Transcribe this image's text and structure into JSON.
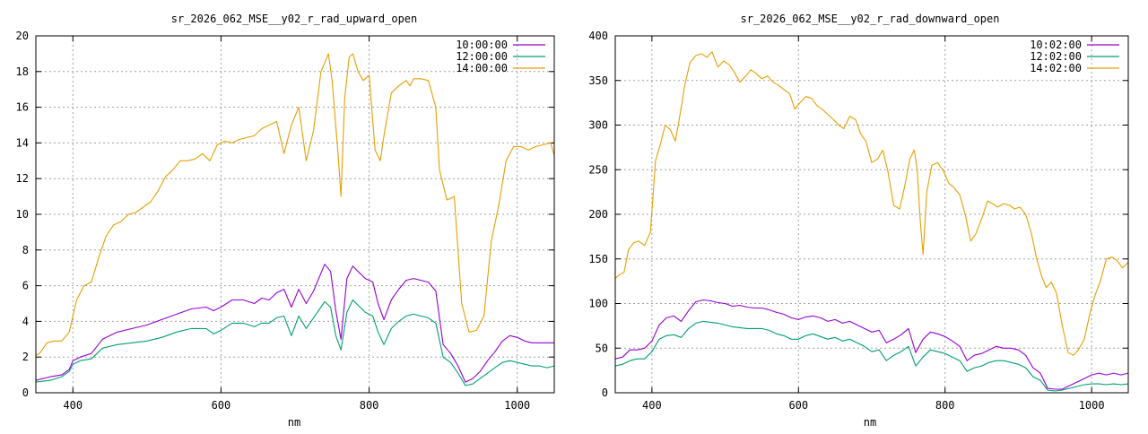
{
  "chart_data": [
    {
      "type": "line",
      "title": "sr_2026_062_MSE__y02_r_rad_upward_open",
      "xlabel": "nm",
      "ylabel": "",
      "xlim": [
        350,
        1050
      ],
      "ylim": [
        0,
        20
      ],
      "xticks": [
        "400",
        "600",
        "800",
        "1000"
      ],
      "yticks": [
        "0",
        "2",
        "4",
        "6",
        "8",
        "10",
        "12",
        "14",
        "16",
        "18",
        "20"
      ],
      "grid": true,
      "legend_position": "top-right",
      "series": [
        {
          "name": "10:00:00",
          "color": "#9400d3",
          "x": [
            350,
            370,
            385,
            395,
            400,
            410,
            425,
            440,
            460,
            480,
            500,
            520,
            540,
            560,
            580,
            590,
            600,
            615,
            630,
            645,
            655,
            665,
            675,
            685,
            695,
            705,
            715,
            725,
            740,
            748,
            755,
            762,
            770,
            778,
            785,
            795,
            805,
            812,
            820,
            830,
            840,
            850,
            860,
            870,
            880,
            890,
            900,
            910,
            920,
            930,
            940,
            950,
            960,
            970,
            980,
            990,
            1000,
            1010,
            1020,
            1030,
            1040,
            1050
          ],
          "y": [
            0.7,
            0.9,
            1.0,
            1.3,
            1.8,
            2.0,
            2.2,
            3.0,
            3.4,
            3.6,
            3.8,
            4.1,
            4.4,
            4.7,
            4.8,
            4.6,
            4.8,
            5.2,
            5.2,
            5.0,
            5.3,
            5.2,
            5.6,
            5.8,
            4.8,
            5.8,
            5.0,
            5.7,
            7.2,
            6.8,
            4.6,
            3.0,
            6.4,
            7.1,
            6.8,
            6.4,
            6.2,
            5.0,
            4.1,
            5.2,
            5.8,
            6.3,
            6.4,
            6.3,
            6.2,
            5.7,
            2.7,
            2.2,
            1.5,
            0.6,
            0.8,
            1.2,
            1.8,
            2.3,
            2.9,
            3.2,
            3.1,
            2.9,
            2.8,
            2.8,
            2.8,
            2.8
          ]
        },
        {
          "name": "12:00:00",
          "color": "#009e73",
          "x": [
            350,
            370,
            385,
            395,
            400,
            410,
            425,
            440,
            460,
            480,
            500,
            520,
            540,
            560,
            580,
            590,
            600,
            615,
            630,
            645,
            655,
            665,
            675,
            685,
            695,
            705,
            715,
            725,
            740,
            748,
            755,
            762,
            770,
            778,
            785,
            795,
            805,
            812,
            820,
            830,
            840,
            850,
            860,
            870,
            880,
            890,
            900,
            910,
            920,
            930,
            940,
            950,
            960,
            970,
            980,
            990,
            1000,
            1010,
            1020,
            1030,
            1040,
            1050
          ],
          "y": [
            0.6,
            0.7,
            0.9,
            1.2,
            1.6,
            1.8,
            1.9,
            2.5,
            2.7,
            2.8,
            2.9,
            3.1,
            3.4,
            3.6,
            3.6,
            3.3,
            3.5,
            3.9,
            3.9,
            3.7,
            3.9,
            3.9,
            4.2,
            4.3,
            3.2,
            4.3,
            3.6,
            4.2,
            5.1,
            4.8,
            3.2,
            2.4,
            4.5,
            5.2,
            4.9,
            4.5,
            4.3,
            3.4,
            2.7,
            3.6,
            4.0,
            4.3,
            4.4,
            4.3,
            4.2,
            3.9,
            2.0,
            1.7,
            1.1,
            0.4,
            0.5,
            0.8,
            1.1,
            1.4,
            1.7,
            1.8,
            1.7,
            1.6,
            1.5,
            1.5,
            1.4,
            1.5
          ]
        },
        {
          "name": "14:00:00",
          "color": "#e69f00",
          "x": [
            350,
            355,
            365,
            375,
            385,
            395,
            405,
            415,
            425,
            435,
            445,
            455,
            465,
            475,
            485,
            495,
            505,
            515,
            525,
            535,
            545,
            555,
            565,
            575,
            585,
            595,
            605,
            615,
            625,
            635,
            645,
            655,
            665,
            675,
            685,
            695,
            705,
            715,
            725,
            735,
            745,
            750,
            758,
            762,
            767,
            773,
            778,
            785,
            792,
            800,
            808,
            815,
            820,
            830,
            840,
            850,
            855,
            860,
            870,
            880,
            890,
            895,
            905,
            915,
            925,
            935,
            945,
            955,
            965,
            975,
            985,
            995,
            1005,
            1015,
            1025,
            1035,
            1045,
            1050
          ],
          "y": [
            2.1,
            2.2,
            2.8,
            2.9,
            2.9,
            3.4,
            5.2,
            6.0,
            6.2,
            7.6,
            8.8,
            9.4,
            9.6,
            10.0,
            10.1,
            10.4,
            10.7,
            11.3,
            12.1,
            12.5,
            13.0,
            13.0,
            13.1,
            13.4,
            13.0,
            13.9,
            14.1,
            14.0,
            14.2,
            14.3,
            14.4,
            14.8,
            15.0,
            15.2,
            13.4,
            15.0,
            16.0,
            13.0,
            14.7,
            18.0,
            19.0,
            17.5,
            13.4,
            11.0,
            16.5,
            18.8,
            19.0,
            18.0,
            17.5,
            17.8,
            13.6,
            13.0,
            14.4,
            16.8,
            17.2,
            17.5,
            17.2,
            17.6,
            17.6,
            17.5,
            16.0,
            12.5,
            10.8,
            11.0,
            5.0,
            3.4,
            3.5,
            4.3,
            8.5,
            10.5,
            13.0,
            13.8,
            13.8,
            13.6,
            13.8,
            13.9,
            14.0,
            13.3
          ]
        }
      ]
    },
    {
      "type": "line",
      "title": "sr_2026_062_MSE__y02_r_rad_downward_open",
      "xlabel": "nm",
      "ylabel": "",
      "xlim": [
        350,
        1050
      ],
      "ylim": [
        0,
        400
      ],
      "xticks": [
        "400",
        "600",
        "800",
        "1000"
      ],
      "yticks": [
        "0",
        "50",
        "100",
        "150",
        "200",
        "250",
        "300",
        "350",
        "400"
      ],
      "grid": true,
      "legend_position": "top-right",
      "series": [
        {
          "name": "10:02:00",
          "color": "#9400d3",
          "x": [
            350,
            360,
            370,
            380,
            390,
            400,
            410,
            420,
            430,
            440,
            450,
            460,
            470,
            480,
            490,
            500,
            510,
            520,
            530,
            540,
            550,
            560,
            570,
            580,
            590,
            600,
            610,
            620,
            630,
            640,
            650,
            660,
            670,
            680,
            690,
            700,
            710,
            720,
            730,
            740,
            750,
            760,
            770,
            780,
            790,
            800,
            810,
            820,
            830,
            840,
            850,
            860,
            870,
            880,
            890,
            900,
            910,
            920,
            930,
            940,
            950,
            960,
            970,
            980,
            990,
            1000,
            1010,
            1020,
            1030,
            1040,
            1050
          ],
          "y": [
            38,
            40,
            48,
            48,
            50,
            58,
            76,
            84,
            86,
            80,
            92,
            102,
            104,
            103,
            101,
            100,
            97,
            98,
            96,
            95,
            95,
            93,
            90,
            88,
            84,
            82,
            85,
            86,
            84,
            80,
            82,
            78,
            80,
            76,
            72,
            68,
            70,
            56,
            60,
            65,
            72,
            45,
            60,
            68,
            66,
            63,
            58,
            52,
            36,
            42,
            44,
            48,
            52,
            50,
            50,
            48,
            42,
            28,
            22,
            5,
            4,
            4,
            8,
            12,
            16,
            20,
            22,
            20,
            22,
            20,
            22
          ]
        },
        {
          "name": "12:02:00",
          "color": "#009e73",
          "x": [
            350,
            360,
            370,
            380,
            390,
            400,
            410,
            420,
            430,
            440,
            450,
            460,
            470,
            480,
            490,
            500,
            510,
            520,
            530,
            540,
            550,
            560,
            570,
            580,
            590,
            600,
            610,
            620,
            630,
            640,
            650,
            660,
            670,
            680,
            690,
            700,
            710,
            720,
            730,
            740,
            750,
            760,
            770,
            780,
            790,
            800,
            810,
            820,
            830,
            840,
            850,
            860,
            870,
            880,
            890,
            900,
            910,
            920,
            930,
            940,
            950,
            960,
            970,
            980,
            990,
            1000,
            1010,
            1020,
            1030,
            1040,
            1050
          ],
          "y": [
            30,
            32,
            36,
            38,
            38,
            46,
            60,
            64,
            65,
            62,
            72,
            78,
            80,
            79,
            78,
            76,
            74,
            73,
            72,
            72,
            72,
            70,
            66,
            64,
            60,
            60,
            64,
            66,
            63,
            60,
            62,
            58,
            60,
            56,
            52,
            46,
            48,
            36,
            42,
            46,
            52,
            30,
            40,
            48,
            46,
            44,
            40,
            36,
            24,
            28,
            30,
            34,
            36,
            36,
            34,
            32,
            28,
            18,
            14,
            3,
            2,
            3,
            5,
            7,
            9,
            10,
            10,
            9,
            10,
            9,
            10
          ]
        },
        {
          "name": "14:02:00",
          "color": "#e69f00",
          "x": [
            350,
            355,
            362,
            368,
            375,
            382,
            390,
            398,
            405,
            412,
            418,
            425,
            432,
            438,
            445,
            452,
            460,
            468,
            475,
            482,
            490,
            498,
            505,
            512,
            520,
            528,
            535,
            542,
            550,
            558,
            565,
            572,
            580,
            588,
            595,
            602,
            610,
            618,
            625,
            632,
            640,
            648,
            655,
            662,
            670,
            678,
            685,
            692,
            700,
            708,
            715,
            722,
            730,
            738,
            745,
            752,
            758,
            762,
            766,
            770,
            775,
            782,
            790,
            798,
            805,
            812,
            820,
            828,
            835,
            842,
            850,
            858,
            865,
            872,
            880,
            888,
            895,
            902,
            910,
            918,
            925,
            932,
            938,
            945,
            952,
            960,
            968,
            975,
            982,
            990,
            998,
            1005,
            1012,
            1020,
            1028,
            1035,
            1042,
            1050
          ],
          "y": [
            128,
            132,
            135,
            160,
            168,
            170,
            165,
            180,
            260,
            280,
            300,
            295,
            282,
            310,
            345,
            370,
            378,
            380,
            376,
            382,
            365,
            372,
            368,
            360,
            348,
            355,
            362,
            358,
            352,
            355,
            348,
            345,
            340,
            335,
            318,
            325,
            332,
            330,
            322,
            318,
            312,
            306,
            300,
            296,
            310,
            306,
            290,
            282,
            258,
            262,
            272,
            248,
            210,
            206,
            232,
            262,
            272,
            250,
            195,
            155,
            225,
            255,
            258,
            248,
            235,
            230,
            222,
            198,
            170,
            178,
            195,
            215,
            212,
            208,
            212,
            210,
            206,
            208,
            200,
            178,
            150,
            130,
            118,
            124,
            112,
            75,
            45,
            42,
            48,
            60,
            90,
            110,
            125,
            150,
            152,
            148,
            140,
            146
          ]
        }
      ]
    }
  ]
}
